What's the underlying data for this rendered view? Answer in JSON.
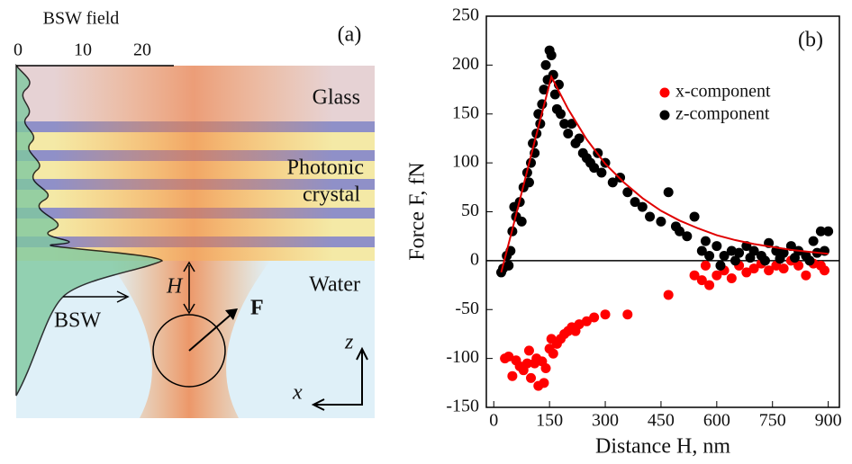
{
  "diagram": {
    "title": "BSW field",
    "ticks": [
      "0",
      "10",
      "20"
    ],
    "panel": "(a)",
    "layers": {
      "glass": "Glass",
      "crystal_1": "Photonic",
      "crystal_2": "crystal",
      "water": "Water"
    },
    "labels": {
      "distance": "H",
      "force": "F",
      "wave": "BSW",
      "z": "z",
      "x": "x"
    }
  },
  "chart_data": {
    "type": "scatter",
    "panel": "(b)",
    "xlabel": "Distance H, nm",
    "ylabel": "Force F, fN",
    "xlim": [
      -20,
      930
    ],
    "ylim": [
      -150,
      250
    ],
    "xticks": [
      0,
      150,
      300,
      450,
      600,
      750,
      900
    ],
    "yticks": [
      250,
      200,
      150,
      100,
      50,
      0,
      -50,
      -100,
      -150
    ],
    "legend": "upper right",
    "series": [
      {
        "name": "x-component",
        "type": "scatter",
        "color": "#ff0000",
        "x": [
          30,
          40,
          50,
          60,
          70,
          80,
          90,
          95,
          100,
          110,
          115,
          120,
          130,
          135,
          140,
          150,
          155,
          160,
          170,
          180,
          190,
          200,
          210,
          220,
          230,
          250,
          270,
          300,
          360,
          470,
          540,
          560,
          570,
          580,
          600,
          620,
          640,
          660,
          680,
          700,
          720,
          740,
          760,
          780,
          800,
          820,
          840,
          860,
          880,
          890
        ],
        "values": [
          -100,
          -98,
          -118,
          -102,
          -108,
          -112,
          -105,
          -92,
          -120,
          -105,
          -100,
          -128,
          -103,
          -125,
          -110,
          -90,
          -80,
          -95,
          -85,
          -80,
          -75,
          -72,
          -68,
          -72,
          -65,
          -62,
          -58,
          -55,
          -55,
          -35,
          -15,
          -20,
          -5,
          -25,
          -15,
          -10,
          -18,
          -5,
          -12,
          -8,
          -3,
          -10,
          -5,
          -8,
          0,
          -5,
          -15,
          -3,
          -5,
          -10
        ]
      },
      {
        "name": "z-component",
        "type": "scatter",
        "color": "#000000",
        "x": [
          20,
          25,
          35,
          40,
          45,
          50,
          55,
          60,
          70,
          75,
          80,
          90,
          95,
          100,
          105,
          110,
          115,
          120,
          125,
          130,
          135,
          140,
          145,
          150,
          155,
          160,
          165,
          170,
          175,
          180,
          190,
          200,
          210,
          220,
          230,
          240,
          250,
          260,
          270,
          280,
          290,
          300,
          320,
          340,
          360,
          380,
          400,
          420,
          450,
          470,
          490,
          500,
          520,
          540,
          560,
          570,
          580,
          600,
          620,
          640,
          660,
          680,
          700,
          720,
          740,
          760,
          780,
          800,
          820,
          840,
          860,
          880,
          890,
          900,
          870,
          610,
          650,
          690,
          730,
          770,
          810,
          850
        ],
        "values": [
          -12,
          -8,
          5,
          -5,
          10,
          30,
          55,
          45,
          60,
          40,
          75,
          90,
          80,
          100,
          120,
          110,
          130,
          150,
          140,
          160,
          175,
          200,
          185,
          215,
          210,
          190,
          170,
          155,
          180,
          150,
          140,
          130,
          140,
          120,
          125,
          110,
          105,
          100,
          95,
          110,
          90,
          100,
          80,
          85,
          70,
          60,
          55,
          45,
          40,
          70,
          35,
          30,
          25,
          45,
          10,
          20,
          5,
          15,
          5,
          10,
          8,
          15,
          10,
          5,
          18,
          10,
          8,
          15,
          10,
          5,
          20,
          30,
          10,
          30,
          8,
          -5,
          0,
          3,
          0,
          2,
          3,
          0
        ]
      },
      {
        "name": null,
        "type": "line",
        "color": "#e00000",
        "x": [
          20,
          50,
          80,
          110,
          155,
          200,
          250,
          300,
          350,
          400,
          450,
          500,
          550,
          600,
          650,
          700,
          750,
          800,
          850,
          900
        ],
        "values": [
          -12,
          32,
          77,
          122,
          188,
          155,
          124,
          99,
          80,
          64,
          51,
          41,
          33,
          26,
          21,
          17,
          14,
          11,
          9,
          7
        ]
      }
    ]
  }
}
